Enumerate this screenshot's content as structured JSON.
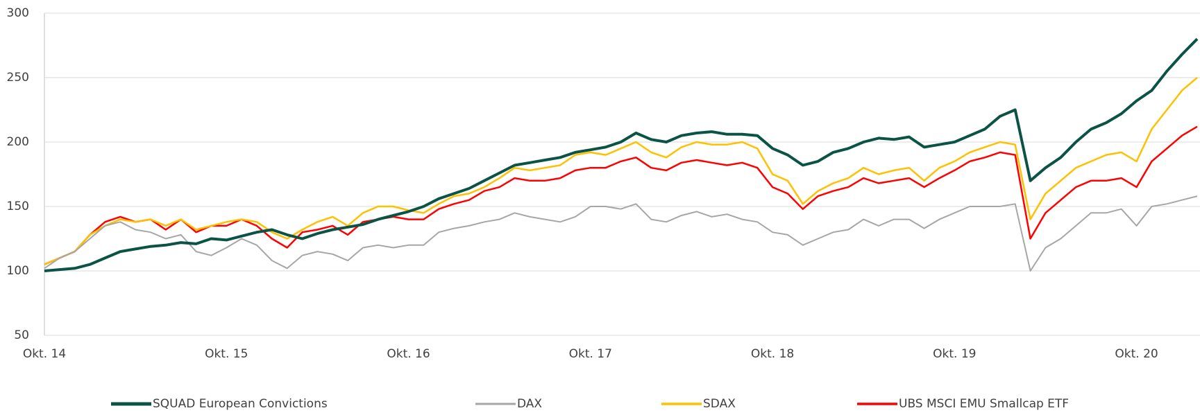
{
  "chart_data": {
    "type": "line",
    "categories": [
      "Okt. 14",
      null,
      null,
      null,
      null,
      null,
      null,
      null,
      null,
      null,
      null,
      null,
      "Okt. 15",
      null,
      null,
      null,
      null,
      null,
      null,
      null,
      null,
      null,
      null,
      null,
      "Okt. 16",
      null,
      null,
      null,
      null,
      null,
      null,
      null,
      null,
      null,
      null,
      null,
      "Okt. 17",
      null,
      null,
      null,
      null,
      null,
      null,
      null,
      null,
      null,
      null,
      null,
      "Okt. 18",
      null,
      null,
      null,
      null,
      null,
      null,
      null,
      null,
      null,
      null,
      null,
      "Okt. 19",
      null,
      null,
      null,
      null,
      null,
      null,
      null,
      null,
      null,
      null,
      null,
      "Okt. 20",
      null,
      null,
      null,
      null
    ],
    "ylim": [
      50,
      300
    ],
    "yticks": [
      50,
      100,
      150,
      200,
      250,
      300
    ],
    "grid": true,
    "legend": "bottom",
    "series": [
      {
        "name": "SQUAD European Convictions",
        "color": "#0b5345",
        "linewidth": 4,
        "values": [
          100,
          101,
          102,
          105,
          110,
          115,
          117,
          119,
          120,
          122,
          121,
          125,
          124,
          127,
          130,
          132,
          128,
          125,
          129,
          132,
          134,
          136,
          140,
          143,
          146,
          150,
          156,
          160,
          164,
          170,
          176,
          182,
          184,
          186,
          188,
          192,
          194,
          196,
          200,
          207,
          202,
          200,
          205,
          207,
          208,
          206,
          206,
          205,
          195,
          190,
          182,
          185,
          192,
          195,
          200,
          203,
          202,
          204,
          196,
          198,
          200,
          205,
          210,
          220,
          225,
          170,
          180,
          188,
          200,
          210,
          215,
          222,
          232,
          240,
          255,
          268,
          280
        ]
      },
      {
        "name": "DAX",
        "color": "#a6a6a6",
        "linewidth": 2,
        "values": [
          102,
          110,
          115,
          125,
          135,
          138,
          132,
          130,
          125,
          128,
          115,
          112,
          118,
          125,
          120,
          108,
          102,
          112,
          115,
          113,
          108,
          118,
          120,
          118,
          120,
          120,
          130,
          133,
          135,
          138,
          140,
          145,
          142,
          140,
          138,
          142,
          150,
          150,
          148,
          152,
          140,
          138,
          143,
          146,
          142,
          144,
          140,
          138,
          130,
          128,
          120,
          125,
          130,
          132,
          140,
          135,
          140,
          140,
          133,
          140,
          145,
          150,
          150,
          150,
          152,
          100,
          118,
          125,
          135,
          145,
          145,
          148,
          135,
          150,
          152,
          155,
          158
        ]
      },
      {
        "name": "SDAX",
        "color": "#ffc000",
        "linewidth": 2.5,
        "values": [
          105,
          110,
          115,
          128,
          135,
          140,
          138,
          140,
          135,
          140,
          132,
          135,
          138,
          140,
          138,
          130,
          125,
          132,
          138,
          142,
          135,
          145,
          150,
          150,
          147,
          145,
          152,
          158,
          160,
          165,
          172,
          180,
          178,
          180,
          182,
          190,
          192,
          190,
          195,
          200,
          192,
          188,
          196,
          200,
          198,
          198,
          200,
          195,
          175,
          170,
          152,
          162,
          168,
          172,
          180,
          175,
          178,
          180,
          170,
          180,
          185,
          192,
          196,
          200,
          198,
          140,
          160,
          170,
          180,
          185,
          190,
          192,
          185,
          210,
          225,
          240,
          250
        ]
      },
      {
        "name": "UBS MSCI EMU Smallcap ETF",
        "color": "#ff0000",
        "linewidth": 2.5,
        "values": [
          105,
          110,
          115,
          128,
          138,
          142,
          138,
          140,
          132,
          140,
          130,
          135,
          135,
          140,
          135,
          125,
          118,
          130,
          132,
          135,
          128,
          138,
          140,
          142,
          140,
          140,
          148,
          152,
          155,
          162,
          165,
          172,
          170,
          170,
          172,
          178,
          180,
          180,
          185,
          188,
          180,
          178,
          184,
          186,
          184,
          182,
          184,
          180,
          165,
          160,
          148,
          158,
          162,
          165,
          172,
          168,
          170,
          172,
          165,
          172,
          178,
          185,
          188,
          192,
          190,
          125,
          145,
          155,
          165,
          170,
          170,
          172,
          165,
          185,
          195,
          205,
          212
        ]
      }
    ]
  }
}
